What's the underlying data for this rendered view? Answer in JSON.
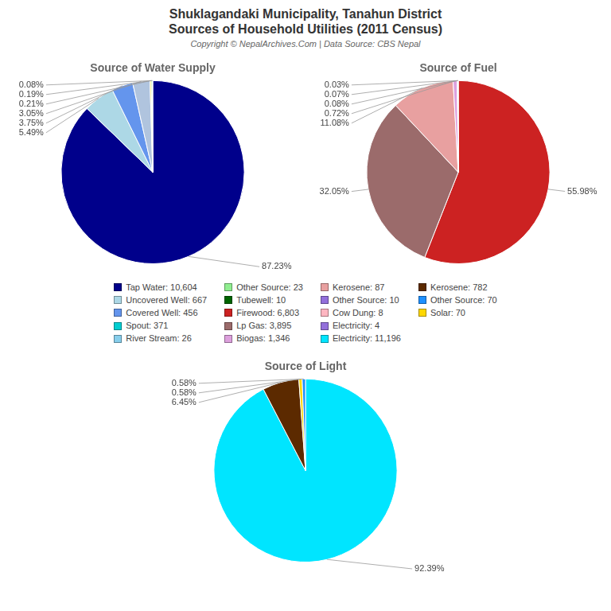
{
  "title": [
    "Shuklagandaki Municipality, Tanahun District",
    "Sources of Household Utilities (2011 Census)"
  ],
  "subtitle": "Copyright © NepalArchives.Com | Data Source: CBS Nepal",
  "legend_entries": [
    {
      "name": "Tap Water: 10,604",
      "color": "#00008B"
    },
    {
      "name": "Uncovered Well: 667",
      "color": "#ADD8E6"
    },
    {
      "name": "Covered Well: 456",
      "color": "#6495ED"
    },
    {
      "name": "Spout: 371",
      "color": "#00CED1"
    },
    {
      "name": "River Stream: 26",
      "color": "#87CEEB"
    },
    {
      "name": "Other Source: 23",
      "color": "#90EE90"
    },
    {
      "name": "Tubewell: 10",
      "color": "#006400"
    },
    {
      "name": "Firewood: 6,803",
      "color": "#CC2222"
    },
    {
      "name": "Lp Gas: 3,895",
      "color": "#9B6B6B"
    },
    {
      "name": "Biogas: 1,346",
      "color": "#DDA0DD"
    },
    {
      "name": "Kerosene: 87",
      "color": "#E8A0A0"
    },
    {
      "name": "Other Source: 10",
      "color": "#9370DB"
    },
    {
      "name": "Cow Dung: 8",
      "color": "#FFB6C1"
    },
    {
      "name": "Electricity: 4",
      "color": "#9370DB"
    },
    {
      "name": "Electricity: 11,196",
      "color": "#00E5FF"
    },
    {
      "name": "Kerosene: 782",
      "color": "#5C2A00"
    },
    {
      "name": "Other Source: 70",
      "color": "#1E90FF"
    },
    {
      "name": "Solar: 70",
      "color": "#FFD700"
    }
  ],
  "chart_data": [
    {
      "type": "pie",
      "title": "Source of Water Supply",
      "values": [
        87.23,
        5.49,
        3.75,
        3.05,
        0.21,
        0.19,
        0.08
      ],
      "value_labels": [
        "87.23%",
        "5.49%",
        "3.75%",
        "3.05%",
        "0.21%",
        "0.19%",
        "0.08%"
      ],
      "colors": [
        "#00008B",
        "#ADD8E6",
        "#6495ED",
        "#B0C4DE",
        "#FFD700",
        "#90EE90",
        "#00BFFF"
      ],
      "data_labels": true
    },
    {
      "type": "pie",
      "title": "Source of Fuel",
      "values": [
        55.98,
        32.05,
        11.08,
        0.72,
        0.08,
        0.07,
        0.03
      ],
      "value_labels": [
        "55.98%",
        "32.05%",
        "11.08%",
        "0.72%",
        "0.08%",
        "0.07%",
        "0.03%"
      ],
      "colors": [
        "#CC2222",
        "#9B6B6B",
        "#E8A0A0",
        "#DDA0DD",
        "#00CED1",
        "#9370DB",
        "#FFB6C1"
      ],
      "data_labels": true
    },
    {
      "type": "pie",
      "title": "Source of Light",
      "values": [
        92.39,
        6.45,
        0.58,
        0.58
      ],
      "value_labels": [
        "92.39%",
        "6.45%",
        "0.58%",
        "0.58%"
      ],
      "colors": [
        "#00E5FF",
        "#5C2A00",
        "#FFD700",
        "#1E90FF"
      ],
      "data_labels": true
    }
  ]
}
